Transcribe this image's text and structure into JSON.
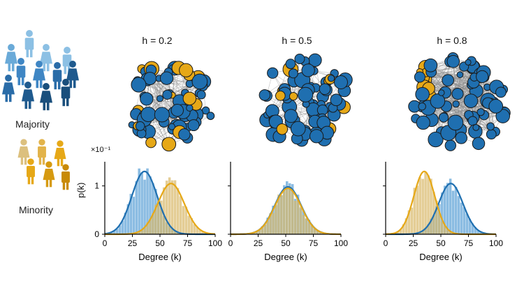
{
  "colors": {
    "majority": "#1f6fb0",
    "majority_light": "#5aa0d6",
    "minority": "#e6a817",
    "minority_light": "#d9b868",
    "edge": "#8c8c8c"
  },
  "legend": {
    "majority_label": "Majority",
    "minority_label": "Minority",
    "majority_icon": "people-group-icon",
    "minority_icon": "people-group-icon"
  },
  "y_label": "p(k)",
  "y_scale_label": "×10⁻¹",
  "panels": [
    {
      "title": "h = 0.2",
      "network": "minority-mixed-network"
    },
    {
      "title": "h = 0.5",
      "network": "random-mixed-network"
    },
    {
      "title": "h = 0.8",
      "network": "minority-separated-network"
    }
  ],
  "chart_data": [
    {
      "type": "bar",
      "title": "h = 0.2",
      "xlabel": "Degree (k)",
      "ylabel": "p(k)",
      "xlim": [
        0,
        100
      ],
      "ylim": [
        0,
        1.5
      ],
      "xticks": [
        0,
        25,
        50,
        75,
        100
      ],
      "yticks": [
        0,
        1
      ],
      "series": [
        {
          "name": "Majority",
          "mean": 36,
          "sd": 11.5,
          "peak": 1.3
        },
        {
          "name": "Minority",
          "mean": 60,
          "sd": 12,
          "peak": 1.05
        }
      ]
    },
    {
      "type": "bar",
      "title": "h = 0.5",
      "xlabel": "Degree (k)",
      "ylabel": "p(k)",
      "xlim": [
        0,
        100
      ],
      "ylim": [
        0,
        1.5
      ],
      "xticks": [
        0,
        25,
        50,
        75,
        100
      ],
      "yticks": [
        0,
        1
      ],
      "series": [
        {
          "name": "Majority",
          "mean": 52,
          "sd": 12,
          "peak": 0.98
        },
        {
          "name": "Minority",
          "mean": 52,
          "sd": 12,
          "peak": 0.95
        }
      ]
    },
    {
      "type": "bar",
      "title": "h = 0.8",
      "xlabel": "Degree (k)",
      "ylabel": "p(k)",
      "xlim": [
        0,
        100
      ],
      "ylim": [
        0,
        1.5
      ],
      "xticks": [
        0,
        25,
        50,
        75,
        100
      ],
      "yticks": [
        0,
        1
      ],
      "series": [
        {
          "name": "Majority",
          "mean": 59,
          "sd": 11,
          "peak": 1.05
        },
        {
          "name": "Minority",
          "mean": 35,
          "sd": 9.5,
          "peak": 1.3
        }
      ]
    }
  ]
}
